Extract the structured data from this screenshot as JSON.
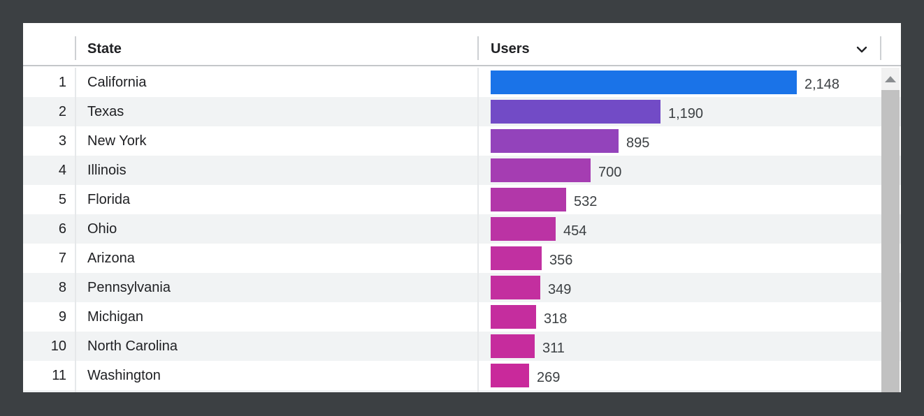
{
  "table": {
    "columns": {
      "state_header": "State",
      "users_header": "Users"
    },
    "rows": [
      {
        "index": "1",
        "state": "California",
        "users": 2148,
        "users_label": "2,148",
        "bar_color": "#1a73e8"
      },
      {
        "index": "2",
        "state": "Texas",
        "users": 1190,
        "users_label": "1,190",
        "bar_color": "#724bc6"
      },
      {
        "index": "3",
        "state": "New York",
        "users": 895,
        "users_label": "895",
        "bar_color": "#9343bb"
      },
      {
        "index": "4",
        "state": "Illinois",
        "users": 700,
        "users_label": "700",
        "bar_color": "#a53db2"
      },
      {
        "index": "5",
        "state": "Florida",
        "users": 532,
        "users_label": "532",
        "bar_color": "#b237a9"
      },
      {
        "index": "6",
        "state": "Ohio",
        "users": 454,
        "users_label": "454",
        "bar_color": "#bb33a4"
      },
      {
        "index": "7",
        "state": "Arizona",
        "users": 356,
        "users_label": "356",
        "bar_color": "#c130a1"
      },
      {
        "index": "8",
        "state": "Pennsylvania",
        "users": 349,
        "users_label": "349",
        "bar_color": "#c32f9f"
      },
      {
        "index": "9",
        "state": "Michigan",
        "users": 318,
        "users_label": "318",
        "bar_color": "#c52d9e"
      },
      {
        "index": "10",
        "state": "North Carolina",
        "users": 311,
        "users_label": "311",
        "bar_color": "#c62c9d"
      },
      {
        "index": "11",
        "state": "Washington",
        "users": 269,
        "users_label": "269",
        "bar_color": "#c9299b"
      }
    ]
  },
  "header_icons": {
    "sort": "chevron-down-icon"
  },
  "scrollbar": {
    "up_button_icon": "triangle-up-icon"
  },
  "colors": {
    "background": "#3c4043",
    "card_bg": "#ffffff",
    "zebra_row": "#f1f3f4",
    "accent_blue": "#1a73e8",
    "pink_end": "#c9299b",
    "text_primary": "#202124",
    "scrollbar_thumb": "#c1c1c1"
  },
  "chart_data": {
    "type": "bar",
    "orientation": "horizontal",
    "title": "",
    "xlabel": "Users",
    "ylabel": "State",
    "grid": false,
    "legend": false,
    "categories": [
      "California",
      "Texas",
      "New York",
      "Illinois",
      "Florida",
      "Ohio",
      "Arizona",
      "Pennsylvania",
      "Michigan",
      "North Carolina",
      "Washington"
    ],
    "values": [
      2148,
      1190,
      895,
      700,
      532,
      454,
      356,
      349,
      318,
      311,
      269
    ],
    "value_labels": [
      "2,148",
      "1,190",
      "895",
      "700",
      "532",
      "454",
      "356",
      "349",
      "318",
      "311",
      "269"
    ],
    "max_value": 2148,
    "bar_colors": [
      "#1a73e8",
      "#724bc6",
      "#9343bb",
      "#a53db2",
      "#b237a9",
      "#bb33a4",
      "#c130a1",
      "#c32f9f",
      "#c52d9e",
      "#c62c9d",
      "#c9299b"
    ]
  }
}
